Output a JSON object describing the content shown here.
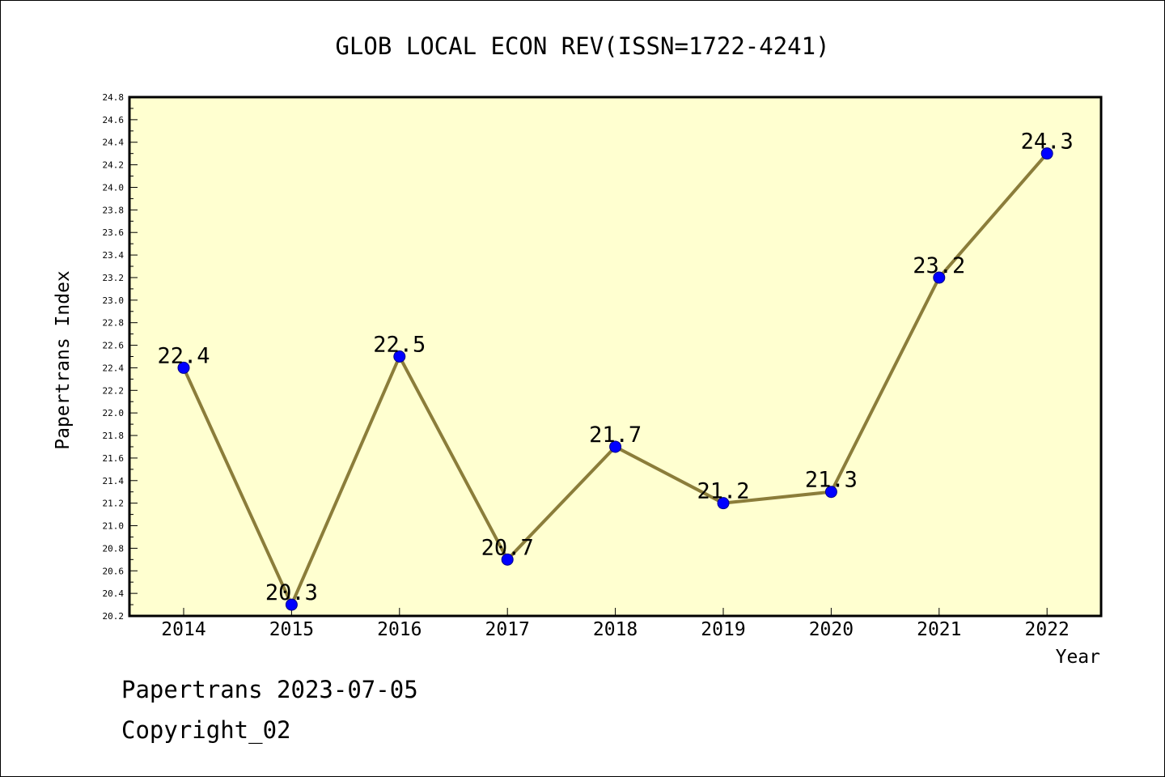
{
  "chart_data": {
    "type": "line",
    "title": "GLOB LOCAL ECON REV(ISSN=1722-4241)",
    "xlabel": "Year",
    "ylabel": "Papertrans Index",
    "categories": [
      "2014",
      "2015",
      "2016",
      "2017",
      "2018",
      "2019",
      "2020",
      "2021",
      "2022"
    ],
    "series": [
      {
        "values": [
          22.4,
          20.3,
          22.5,
          20.7,
          21.7,
          21.2,
          21.3,
          23.2,
          24.3
        ]
      }
    ],
    "data_labels": [
      "22.4",
      "20.3",
      "22.5",
      "20.7",
      "21.7",
      "21.2",
      "21.3",
      "23.2",
      "24.3"
    ],
    "ylim": [
      20.2,
      24.8
    ],
    "yticks": [
      "20.2",
      "20.4",
      "20.6",
      "20.8",
      "21.0",
      "21.2",
      "21.4",
      "21.6",
      "21.8",
      "22.0",
      "22.2",
      "22.4",
      "22.6",
      "22.8",
      "23.0",
      "23.2",
      "23.4",
      "23.6",
      "23.8",
      "24.0",
      "24.2",
      "24.4",
      "24.6",
      "24.8"
    ],
    "grid": false,
    "colors": {
      "plot_background": "#FFFFD0",
      "line": "#8B7D3A",
      "marker": "#0000FF"
    }
  },
  "footer": {
    "line1": "Papertrans 2023-07-05",
    "line2": "Copyright_02"
  }
}
